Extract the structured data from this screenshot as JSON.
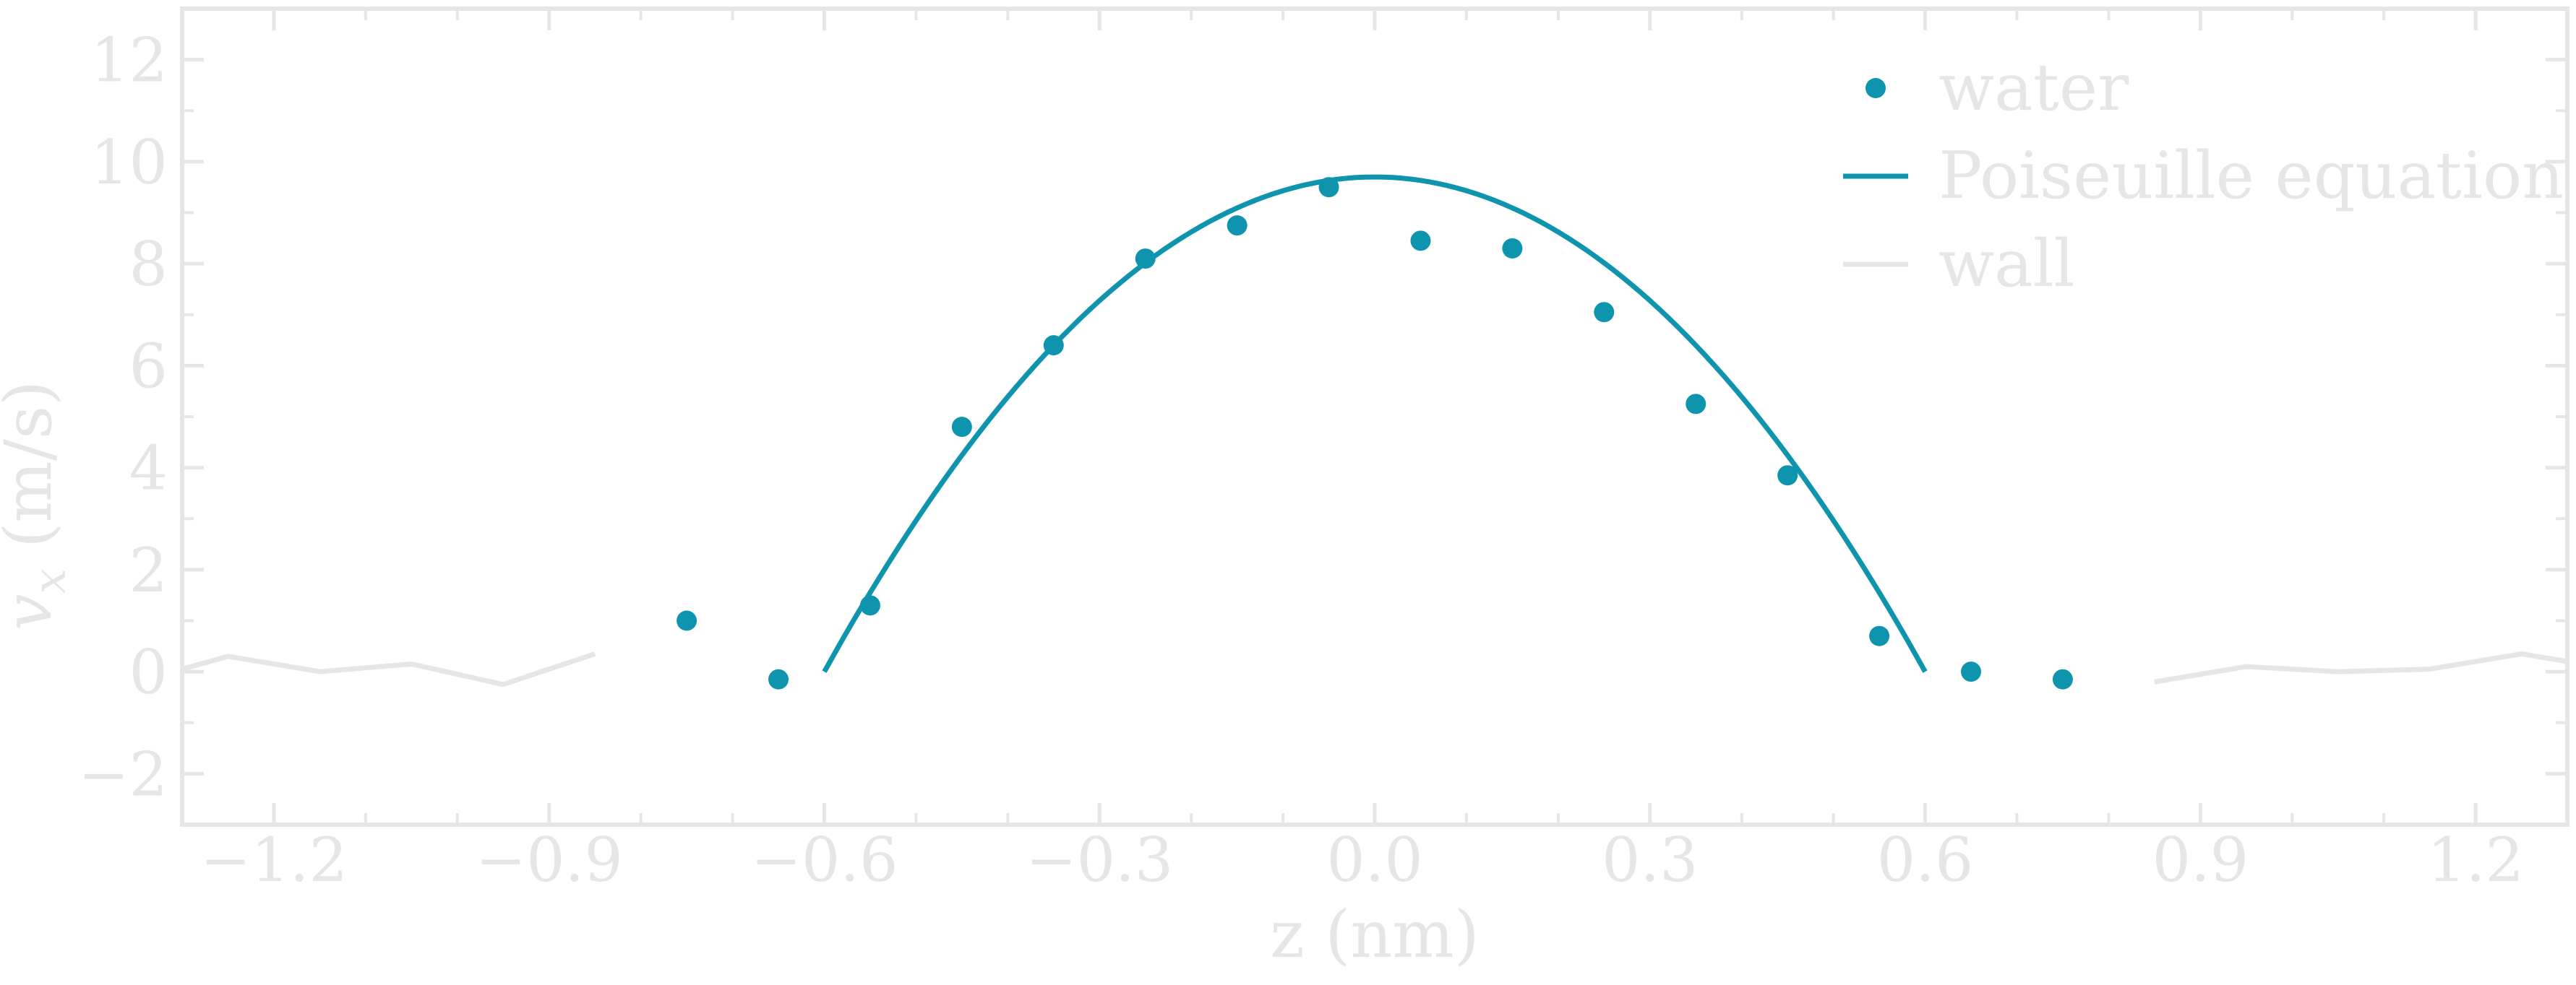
{
  "chart_data": {
    "type": "scatter",
    "xlabel": "z (nm)",
    "ylabel": "v_x (m/s)",
    "xlim": [
      -1.3,
      1.3
    ],
    "ylim": [
      -3,
      13
    ],
    "xticks": [
      {
        "value": -1.2,
        "label": "−1.2"
      },
      {
        "value": -0.9,
        "label": "−0.9"
      },
      {
        "value": -0.6,
        "label": "−0.6"
      },
      {
        "value": -0.3,
        "label": "−0.3"
      },
      {
        "value": 0.0,
        "label": "0.0"
      },
      {
        "value": 0.3,
        "label": "0.3"
      },
      {
        "value": 0.6,
        "label": "0.6"
      },
      {
        "value": 0.9,
        "label": "0.9"
      },
      {
        "value": 1.2,
        "label": "1.2"
      }
    ],
    "yticks": [
      {
        "value": -2,
        "label": "−2"
      },
      {
        "value": 0,
        "label": "0"
      },
      {
        "value": 2,
        "label": "2"
      },
      {
        "value": 4,
        "label": "4"
      },
      {
        "value": 6,
        "label": "6"
      },
      {
        "value": 8,
        "label": "8"
      },
      {
        "value": 10,
        "label": "10"
      },
      {
        "value": 12,
        "label": "12"
      }
    ],
    "grid": false,
    "legend_position": "top-right",
    "series": [
      {
        "name": "water",
        "kind": "scatter",
        "color": "#0e95ad",
        "x": [
          -0.75,
          -0.65,
          -0.55,
          -0.45,
          -0.35,
          -0.25,
          -0.15,
          -0.05,
          0.05,
          0.15,
          0.25,
          0.35,
          0.45,
          0.55,
          0.65,
          0.75
        ],
        "y": [
          1.0,
          -0.15,
          1.3,
          4.8,
          6.4,
          8.1,
          8.75,
          9.5,
          8.45,
          8.3,
          7.05,
          5.25,
          3.85,
          0.7,
          0.0,
          -0.15
        ]
      },
      {
        "name": "Poiseuille equation",
        "kind": "line",
        "color": "#0e95ad",
        "x": [
          -0.6,
          -0.5,
          -0.4,
          -0.3,
          -0.2,
          -0.1,
          0.0,
          0.1,
          0.2,
          0.3,
          0.4,
          0.5,
          0.6
        ],
        "y": [
          0.0,
          2.96,
          5.39,
          7.27,
          8.62,
          9.43,
          9.7,
          9.43,
          8.62,
          7.27,
          5.39,
          2.96,
          0.0
        ]
      },
      {
        "name": "wall",
        "kind": "line",
        "color": "#e6e6e6",
        "segments": [
          {
            "x": [
              -1.3,
              -1.25,
              -1.15,
              -1.05,
              -0.95,
              -0.85
            ],
            "y": [
              0.05,
              0.3,
              0.0,
              0.15,
              -0.25,
              0.35
            ]
          },
          {
            "x": [
              0.85,
              0.95,
              1.05,
              1.15,
              1.25,
              1.3
            ],
            "y": [
              -0.2,
              0.1,
              0.0,
              0.05,
              0.35,
              0.2
            ]
          }
        ]
      }
    ]
  }
}
